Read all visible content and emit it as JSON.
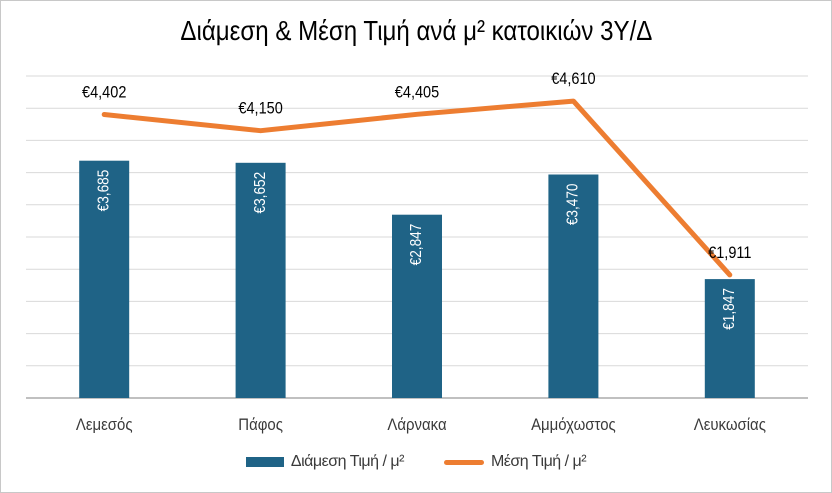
{
  "window": {
    "background": "#ffffff",
    "border_color": "#c8c8c8"
  },
  "chart": {
    "colors": {
      "bar": "#1F6386",
      "line": "#ED7D31",
      "gridline": "#D9D9D9",
      "axis_line": "#ABABAB",
      "bar_value_label": "#FFFFFF",
      "line_value_label": "#000000",
      "category_label": "#3A3A3A",
      "title": "#000000"
    }
  },
  "chart_data": {
    "type": "combo-bar-line",
    "title": "Διάμεση & Μέση Τιμή ανά μ² κατοικιών 3Υ/Δ",
    "categories": [
      "Λεμεσός",
      "Πάφος",
      "Λάρνακα",
      "Αμμόχωστος",
      "Λευκωσίας"
    ],
    "series": [
      {
        "name": "Διάμεση Τιμή / μ²",
        "type": "bar",
        "color": "#1F6386",
        "values": [
          3685,
          3652,
          2847,
          3470,
          1847
        ],
        "labels": [
          "€3,685",
          "€3,652",
          "€2,847",
          "€3,470",
          "€1,847"
        ]
      },
      {
        "name": "Μέση Τιμή / μ²",
        "type": "line",
        "color": "#ED7D31",
        "values": [
          4402,
          4150,
          4405,
          4610,
          1911
        ],
        "labels": [
          "€4,402",
          "€4,150",
          "€4,405",
          "€4,610",
          "€1,911"
        ]
      }
    ],
    "xlabel": "",
    "ylabel": "",
    "ylim": [
      0,
      5000
    ],
    "gridline_step": 500,
    "grid": "horizontal",
    "y_axis_labels_visible": false,
    "legend_position": "bottom"
  }
}
